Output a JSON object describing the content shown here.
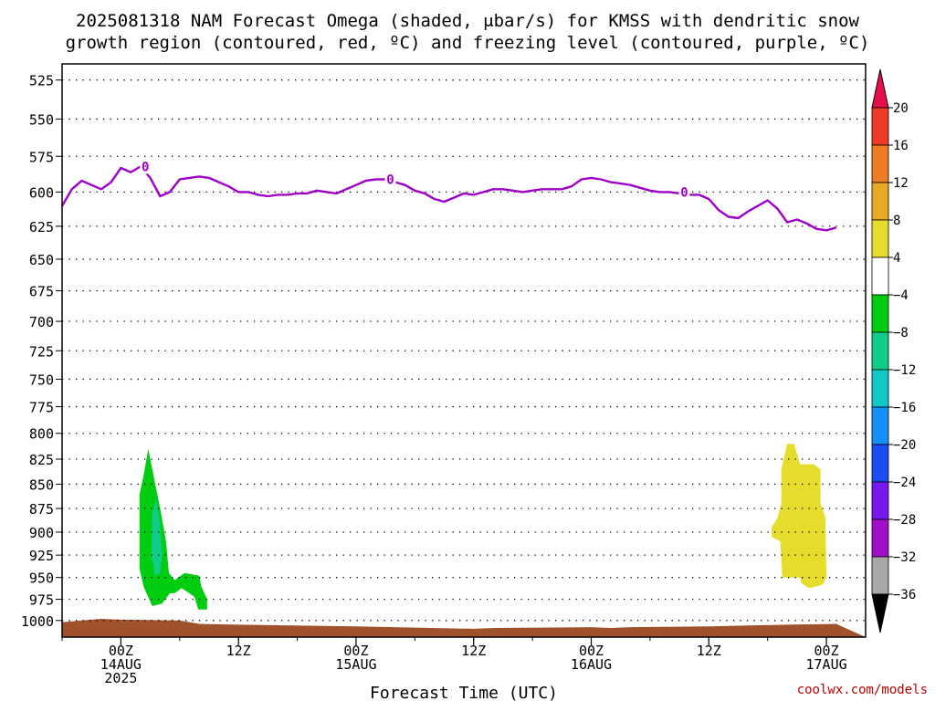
{
  "title_line1": "2025081318 NAM Forecast Omega (shaded, μbar/s) for KMSS with dendritic snow",
  "title_line2": "growth region (contoured, red, ºC) and freezing level (contoured, purple, ºC)",
  "footer": "coolwx.com/models",
  "chart_data": {
    "type": "time-height",
    "xlabel": "Forecast Time (UTC)",
    "x_start": "2025-08-13 18Z",
    "x_end": "2025-08-17 06Z",
    "x_ticks": [
      {
        "hour": 6,
        "lines": [
          "00Z",
          "14AUG",
          "2025"
        ]
      },
      {
        "hour": 18,
        "lines": [
          "12Z"
        ]
      },
      {
        "hour": 30,
        "lines": [
          "00Z",
          "15AUG"
        ]
      },
      {
        "hour": 42,
        "lines": [
          "12Z"
        ]
      },
      {
        "hour": 54,
        "lines": [
          "00Z",
          "16AUG"
        ]
      },
      {
        "hour": 66,
        "lines": [
          "12Z"
        ]
      },
      {
        "hour": 78,
        "lines": [
          "00Z",
          "17AUG"
        ]
      }
    ],
    "y_ticks": [
      525,
      550,
      575,
      600,
      625,
      650,
      675,
      700,
      725,
      750,
      775,
      800,
      825,
      850,
      875,
      900,
      925,
      950,
      975,
      1000
    ],
    "ylim": [
      515,
      1020
    ],
    "y_scale": "log-pressure",
    "grid": true,
    "freezing_level_label": "0",
    "freezing_level_hpa": [
      [
        0,
        610
      ],
      [
        1,
        598
      ],
      [
        2,
        592
      ],
      [
        3,
        595
      ],
      [
        4,
        598
      ],
      [
        5,
        593
      ],
      [
        6,
        583
      ],
      [
        7,
        586
      ],
      [
        8,
        582
      ],
      [
        9,
        590
      ],
      [
        10,
        603
      ],
      [
        11,
        600
      ],
      [
        12,
        591
      ],
      [
        13,
        590
      ],
      [
        14,
        589
      ],
      [
        15,
        590
      ],
      [
        16,
        593
      ],
      [
        17,
        596
      ],
      [
        18,
        600
      ],
      [
        19,
        600
      ],
      [
        20,
        602
      ],
      [
        21,
        603
      ],
      [
        22,
        602
      ],
      [
        23,
        602
      ],
      [
        24,
        601
      ],
      [
        25,
        601
      ],
      [
        26,
        599
      ],
      [
        27,
        600
      ],
      [
        28,
        601
      ],
      [
        29,
        598
      ],
      [
        30,
        595
      ],
      [
        31,
        592
      ],
      [
        32,
        591
      ],
      [
        33,
        591
      ],
      [
        34,
        593
      ],
      [
        35,
        595
      ],
      [
        36,
        599
      ],
      [
        37,
        601
      ],
      [
        38,
        605
      ],
      [
        39,
        607
      ],
      [
        40,
        604
      ],
      [
        41,
        601
      ],
      [
        42,
        602
      ],
      [
        43,
        600
      ],
      [
        44,
        598
      ],
      [
        45,
        598
      ],
      [
        46,
        599
      ],
      [
        47,
        600
      ],
      [
        48,
        599
      ],
      [
        49,
        598
      ],
      [
        50,
        598
      ],
      [
        51,
        598
      ],
      [
        52,
        596
      ],
      [
        53,
        591
      ],
      [
        54,
        590
      ],
      [
        55,
        591
      ],
      [
        56,
        593
      ],
      [
        57,
        594
      ],
      [
        58,
        595
      ],
      [
        59,
        597
      ],
      [
        60,
        599
      ],
      [
        61,
        600
      ],
      [
        62,
        600
      ],
      [
        63,
        601
      ],
      [
        64,
        602
      ],
      [
        65,
        602
      ],
      [
        66,
        605
      ],
      [
        67,
        613
      ],
      [
        68,
        618
      ],
      [
        69,
        619
      ],
      [
        70,
        614
      ],
      [
        71,
        610
      ],
      [
        72,
        606
      ],
      [
        73,
        612
      ],
      [
        74,
        622
      ],
      [
        75,
        620
      ],
      [
        76,
        623
      ],
      [
        77,
        627
      ],
      [
        78,
        628
      ],
      [
        79,
        626
      ]
    ],
    "omega_colorbar": {
      "labels": [
        "20",
        "16",
        "12",
        "8",
        "4",
        "−4",
        "−8",
        "−12",
        "−16",
        "−20",
        "−24",
        "−28",
        "−32",
        "−36"
      ],
      "colors": [
        "#e8104c",
        "#f03a28",
        "#ee7c24",
        "#e8aa24",
        "#e6dc2c",
        "#ffffff",
        "#00cc10",
        "#10cc88",
        "#10c8c8",
        "#1490f8",
        "#1c4cf4",
        "#7818f0",
        "#a010c8",
        "#a8a8a8",
        "#000000"
      ]
    },
    "omega_regions": [
      {
        "color": "#00cc10",
        "value_range": "-8 to -4",
        "points": [
          [
            7.9,
            940
          ],
          [
            7.9,
            860
          ],
          [
            8.3,
            842
          ],
          [
            8.8,
            815
          ],
          [
            9.5,
            850
          ],
          [
            10.1,
            880
          ],
          [
            10.6,
            910
          ],
          [
            10.9,
            945
          ],
          [
            11.5,
            953
          ],
          [
            12.5,
            945
          ],
          [
            14,
            948
          ],
          [
            14.2,
            960
          ],
          [
            14.8,
            975
          ],
          [
            14.8,
            987
          ],
          [
            13.9,
            987
          ],
          [
            13.5,
            972
          ],
          [
            12.2,
            962
          ],
          [
            11.5,
            968
          ],
          [
            11.0,
            968
          ],
          [
            10.2,
            980
          ],
          [
            9.2,
            983
          ],
          [
            8.3,
            960
          ]
        ]
      },
      {
        "color": "#10cc88",
        "value_range": "-12 to -8",
        "points": [
          [
            9.1,
            925
          ],
          [
            9.2,
            880
          ],
          [
            9.6,
            865
          ],
          [
            10.0,
            890
          ],
          [
            10.2,
            925
          ],
          [
            10.0,
            945
          ],
          [
            9.5,
            948
          ]
        ]
      },
      {
        "color": "#e6dc2c",
        "value_range": "4 to 8",
        "points": [
          [
            72.4,
            895
          ],
          [
            73.0,
            885
          ],
          [
            73.4,
            870
          ],
          [
            73.4,
            835
          ],
          [
            74.0,
            810
          ],
          [
            74.7,
            810
          ],
          [
            75.3,
            830
          ],
          [
            76.7,
            830
          ],
          [
            77.4,
            835
          ],
          [
            77.4,
            870
          ],
          [
            77.9,
            885
          ],
          [
            78.0,
            950
          ],
          [
            77.6,
            958
          ],
          [
            77.1,
            960
          ],
          [
            76.2,
            962
          ],
          [
            75.5,
            957
          ],
          [
            75.3,
            950
          ],
          [
            73.5,
            950
          ],
          [
            73.3,
            910
          ],
          [
            72.4,
            905
          ]
        ]
      }
    ],
    "terrain_color": "#a0522d",
    "terrain_top_hpa": [
      [
        0,
        1002
      ],
      [
        2,
        1000
      ],
      [
        4,
        998
      ],
      [
        6,
        999
      ],
      [
        12,
        1000
      ],
      [
        14,
        1004
      ],
      [
        18,
        1005
      ],
      [
        30,
        1007
      ],
      [
        42,
        1010
      ],
      [
        44,
        1009
      ],
      [
        54,
        1008
      ],
      [
        56,
        1009
      ],
      [
        58,
        1008
      ],
      [
        66,
        1007
      ],
      [
        70,
        1006
      ],
      [
        74,
        1005
      ],
      [
        79,
        1004
      ]
    ]
  }
}
